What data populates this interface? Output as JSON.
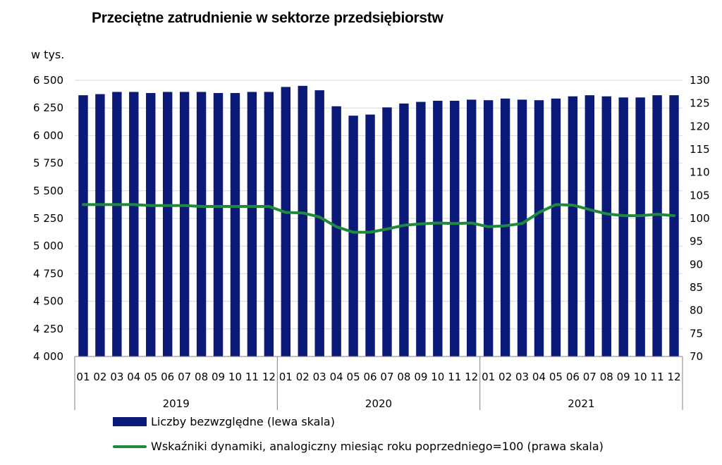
{
  "chart_data": {
    "type": "bar",
    "title": "Przeciętne zatrudnienie w sektorze przedsiębiorstw",
    "ylabel": "w tys.",
    "categories": [
      "01",
      "02",
      "03",
      "04",
      "05",
      "06",
      "07",
      "08",
      "09",
      "10",
      "11",
      "12",
      "01",
      "02",
      "03",
      "04",
      "05",
      "06",
      "07",
      "08",
      "09",
      "10",
      "11",
      "12",
      "01",
      "02",
      "03",
      "04",
      "05",
      "06",
      "07",
      "08",
      "09",
      "10",
      "11",
      "12"
    ],
    "groups": [
      {
        "label": "2019",
        "count": 12
      },
      {
        "label": "2020",
        "count": 12
      },
      {
        "label": "2021",
        "count": 12
      }
    ],
    "left_axis": {
      "ylim": [
        4000,
        6500
      ],
      "ticks": [
        4000,
        4250,
        4500,
        4750,
        5000,
        5250,
        5500,
        5750,
        6000,
        6250,
        6500
      ],
      "tick_labels": [
        "4 000",
        "4 250",
        "4 500",
        "4 750",
        "5 000",
        "5 250",
        "5 500",
        "5 750",
        "6 000",
        "6 250",
        "6 500"
      ]
    },
    "right_axis": {
      "ylim": [
        70,
        130
      ],
      "ticks": [
        70,
        75,
        80,
        85,
        90,
        95,
        100,
        105,
        110,
        115,
        120,
        125,
        130
      ],
      "tick_labels": [
        "70",
        "75",
        "80",
        "85",
        "90",
        "95",
        "100",
        "105",
        "110",
        "115",
        "120",
        "125",
        "130"
      ]
    },
    "series": [
      {
        "name": "Liczby bezwzględne (lewa skala)",
        "type": "bar",
        "axis": "left",
        "color": "#0b1a78",
        "values": [
          6365,
          6375,
          6395,
          6395,
          6385,
          6395,
          6395,
          6395,
          6385,
          6385,
          6395,
          6395,
          6440,
          6450,
          6410,
          6265,
          6180,
          6190,
          6255,
          6290,
          6305,
          6315,
          6315,
          6325,
          6320,
          6335,
          6325,
          6320,
          6335,
          6355,
          6365,
          6355,
          6345,
          6345,
          6365,
          6365
        ]
      },
      {
        "name": "Wskaźniki dynamiki, analogiczny miesiąc roku poprzedniego=100 (prawa skala)",
        "type": "line",
        "axis": "right",
        "color": "#1f8a3c",
        "values": [
          103.0,
          103.0,
          103.0,
          103.0,
          102.8,
          102.8,
          102.8,
          102.6,
          102.6,
          102.6,
          102.6,
          102.6,
          101.3,
          101.2,
          100.3,
          98.2,
          97.0,
          97.0,
          97.7,
          98.5,
          98.8,
          99.0,
          98.9,
          99.0,
          98.2,
          98.4,
          98.9,
          101.3,
          103.0,
          102.9,
          101.9,
          101.0,
          100.6,
          100.6,
          100.9,
          100.6
        ]
      }
    ],
    "legend_position": "bottom-left",
    "grid": true
  }
}
